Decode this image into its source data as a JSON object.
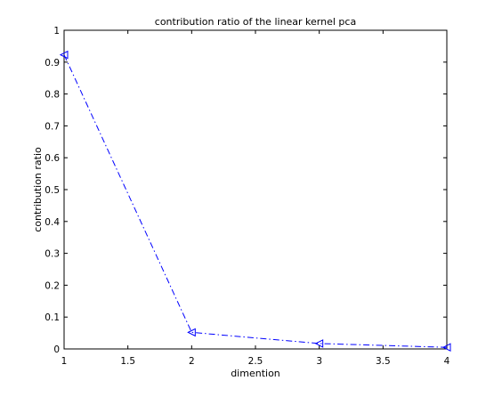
{
  "chart_data": {
    "type": "line",
    "title": "contribution ratio of the linear kernel pca",
    "xlabel": "dimention",
    "ylabel": "contribution ratio",
    "xlim": [
      1,
      4
    ],
    "ylim": [
      0,
      1
    ],
    "xticks": [
      "1",
      "1.5",
      "2",
      "2.5",
      "3",
      "3.5",
      "4"
    ],
    "xtick_values": [
      1,
      1.5,
      2,
      2.5,
      3,
      3.5,
      4
    ],
    "yticks": [
      "0",
      "0.1",
      "0.2",
      "0.3",
      "0.4",
      "0.5",
      "0.6",
      "0.7",
      "0.8",
      "0.9",
      "1"
    ],
    "ytick_values": [
      0,
      0.1,
      0.2,
      0.3,
      0.4,
      0.5,
      0.6,
      0.7,
      0.8,
      0.9,
      1
    ],
    "grid": false,
    "line_style": "dash-dot",
    "marker": "left-pointing triangle",
    "series": [
      {
        "color": "#0000ff",
        "x": [
          1,
          2,
          3,
          4
        ],
        "y": [
          0.923,
          0.052,
          0.017,
          0.005
        ]
      }
    ]
  }
}
